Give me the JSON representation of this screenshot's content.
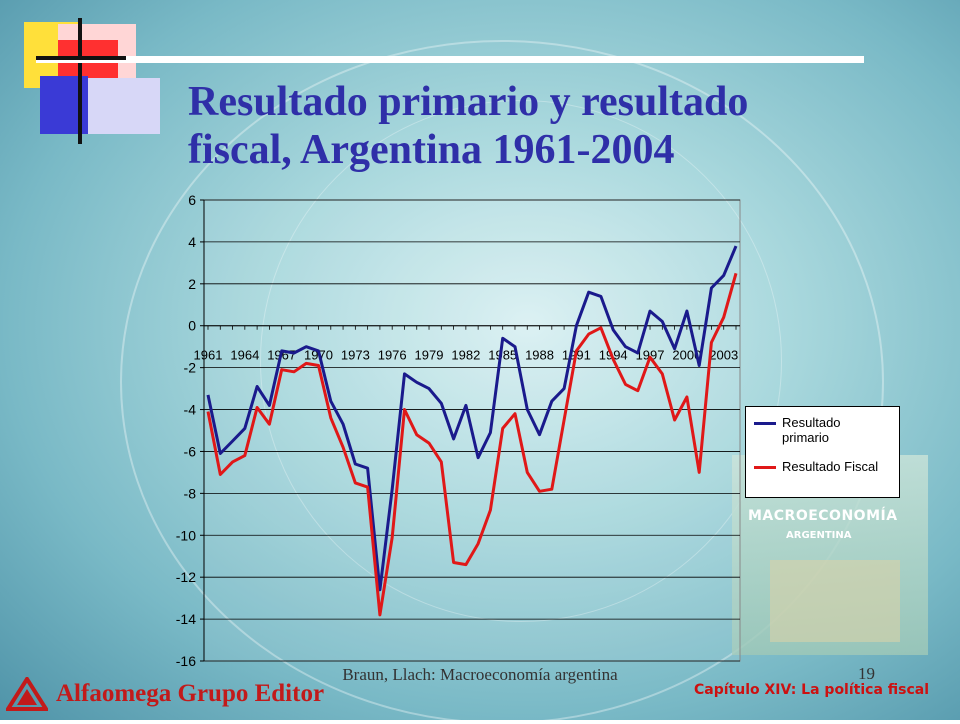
{
  "title_line1": "Resultado primario y resultado",
  "title_line2": "fiscal, Argentina 1961-2004",
  "footer": {
    "author": "Braun, Llach: Macroeconomía argentina",
    "page": "19",
    "chapter": "Capítulo XIV: La política fiscal",
    "publisher": "Alfaomega Grupo Editor"
  },
  "book_cover": {
    "title": "MACROECONOMÍA",
    "subtitle": "ARGENTINA"
  },
  "colors": {
    "primario": "#1a1a8c",
    "fiscal": "#e01818",
    "title": "#2f2fa8"
  },
  "chart_data": {
    "type": "line",
    "xlabel": "",
    "ylabel": "",
    "ylim": [
      -16,
      6
    ],
    "yticks": [
      6,
      4,
      2,
      0,
      -2,
      -4,
      -6,
      -8,
      -10,
      -12,
      -14,
      -16
    ],
    "x_tick_labels": [
      "1961",
      "1964",
      "1967",
      "1970",
      "1973",
      "1976",
      "1979",
      "1982",
      "1985",
      "1988",
      "1991",
      "1994",
      "1997",
      "2000",
      "2003"
    ],
    "x": [
      1961,
      1962,
      1963,
      1964,
      1965,
      1966,
      1967,
      1968,
      1969,
      1970,
      1971,
      1972,
      1973,
      1974,
      1975,
      1976,
      1977,
      1978,
      1979,
      1980,
      1981,
      1982,
      1983,
      1984,
      1985,
      1986,
      1987,
      1988,
      1989,
      1990,
      1991,
      1992,
      1993,
      1994,
      1995,
      1996,
      1997,
      1998,
      1999,
      2000,
      2001,
      2002,
      2003,
      2004
    ],
    "grid": "horizontal",
    "legend": "right",
    "series": [
      {
        "name": "Resultado primario",
        "values": [
          -3.3,
          -6.1,
          -5.5,
          -4.9,
          -2.9,
          -3.8,
          -1.2,
          -1.3,
          -1.0,
          -1.2,
          -3.6,
          -4.7,
          -6.6,
          -6.8,
          -12.6,
          -7.8,
          -2.3,
          -2.7,
          -3.0,
          -3.7,
          -5.4,
          -3.8,
          -6.3,
          -5.1,
          -0.6,
          -1.0,
          -4.0,
          -5.2,
          -3.6,
          -3.0,
          0.0,
          1.6,
          1.4,
          -0.2,
          -1.0,
          -1.3,
          0.7,
          0.2,
          -1.1,
          0.7,
          -1.9,
          1.8,
          2.4,
          3.8
        ]
      },
      {
        "name": "Resultado Fiscal",
        "values": [
          -4.1,
          -7.1,
          -6.5,
          -6.2,
          -3.9,
          -4.7,
          -2.1,
          -2.2,
          -1.8,
          -1.9,
          -4.4,
          -5.8,
          -7.5,
          -7.7,
          -13.8,
          -10.1,
          -4.0,
          -5.2,
          -5.6,
          -6.5,
          -11.3,
          -11.4,
          -10.4,
          -8.8,
          -4.9,
          -4.2,
          -7.0,
          -7.9,
          -7.8,
          -4.5,
          -1.2,
          -0.4,
          -0.1,
          -1.6,
          -2.8,
          -3.1,
          -1.5,
          -2.3,
          -4.5,
          -3.4,
          -7.0,
          -0.8,
          0.4,
          2.5
        ]
      }
    ]
  }
}
